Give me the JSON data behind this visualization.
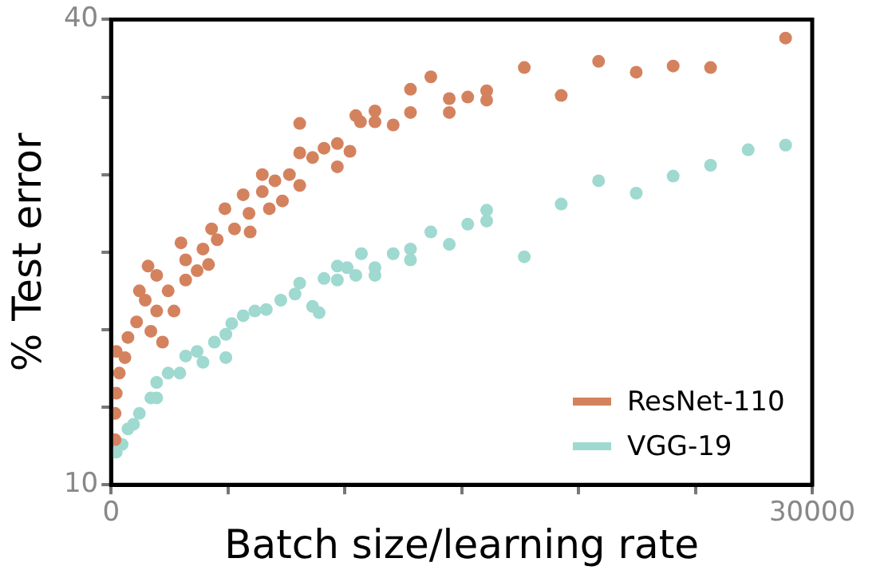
{
  "chart_data": {
    "type": "scatter",
    "xlabel": "Batch size/learning rate",
    "ylabel": "% Test error",
    "xlim": [
      0,
      30000
    ],
    "ylim": [
      10,
      40
    ],
    "xticks": [
      0,
      {
        "value": 5000,
        "label": null
      },
      {
        "value": 10000,
        "label": null
      },
      {
        "value": 15000,
        "label": null
      },
      {
        "value": 20000,
        "label": null
      },
      {
        "value": 25000,
        "label": null
      },
      30000
    ],
    "yticks": [
      10,
      {
        "value": 15,
        "label": null
      },
      {
        "value": 20,
        "label": null
      },
      {
        "value": 25,
        "label": null
      },
      {
        "value": 30,
        "label": null
      },
      {
        "value": 35,
        "label": null
      },
      40
    ],
    "grid": false,
    "legend": "bottom right",
    "marker": "circle",
    "series": [
      {
        "name": "ResNet-110",
        "color": "#d4825e",
        "x": [
          28860,
          25650,
          24050,
          22470,
          20860,
          19260,
          17680,
          16070,
          16070,
          15260,
          14470,
          14470,
          13680,
          12810,
          12810,
          12070,
          11290,
          11290,
          10670,
          10470,
          8070,
          8070,
          8620,
          9110,
          9680,
          9680,
          10220,
          6470,
          7010,
          7630,
          8070,
          5650,
          6470,
          6770,
          5900,
          7330,
          4870,
          5280,
          5950,
          4300,
          4540,
          2990,
          3190,
          3930,
          1580,
          1950,
          2440,
          3190,
          3680,
          1460,
          1950,
          1090,
          720,
          590,
          350,
          220,
          170,
          170,
          220,
          1700,
          2200,
          2690,
          1210,
          4170
        ],
        "values": [
          38.8,
          36.9,
          37.0,
          36.6,
          37.3,
          35.1,
          36.9,
          35.4,
          34.8,
          35.0,
          34.9,
          34.0,
          36.3,
          35.5,
          34.0,
          33.2,
          34.1,
          33.4,
          33.4,
          33.8,
          33.3,
          31.4,
          31.1,
          31.7,
          32.0,
          30.5,
          31.5,
          30.0,
          29.6,
          30.0,
          29.3,
          28.7,
          28.9,
          27.8,
          27.5,
          28.3,
          27.8,
          26.5,
          26.3,
          26.5,
          25.8,
          25.6,
          24.5,
          25.2,
          24.1,
          23.5,
          22.5,
          23.2,
          23.8,
          21.9,
          21.2,
          20.5,
          19.5,
          18.2,
          17.2,
          15.9,
          14.6,
          12.9,
          18.6,
          19.9,
          19.2,
          21.2,
          22.5,
          24.2
        ]
      },
      {
        "name": "VGG-19",
        "color": "#9fd9d0",
        "x": [
          28860,
          27260,
          25650,
          24050,
          22470,
          20860,
          19260,
          17680,
          16070,
          16070,
          15260,
          14470,
          13680,
          12810,
          12810,
          12070,
          11290,
          11290,
          10710,
          10470,
          10100,
          9680,
          9680,
          9110,
          8070,
          8620,
          8900,
          7870,
          7260,
          6640,
          6150,
          5650,
          5160,
          4910,
          4420,
          3680,
          3190,
          2440,
          1950,
          1700,
          1210,
          720,
          470,
          220,
          4910,
          3930,
          2940,
          1950,
          960
        ],
        "values": [
          31.9,
          31.6,
          30.6,
          29.9,
          28.8,
          29.6,
          28.1,
          24.7,
          27.7,
          27.0,
          26.8,
          25.5,
          26.3,
          25.2,
          24.5,
          24.9,
          24.0,
          23.5,
          24.9,
          23.5,
          24.0,
          24.1,
          23.2,
          23.3,
          23.0,
          21.5,
          21.1,
          22.3,
          21.9,
          21.3,
          21.2,
          20.9,
          20.4,
          19.7,
          19.2,
          18.6,
          18.3,
          17.2,
          16.6,
          15.6,
          14.6,
          13.6,
          12.6,
          12.1,
          18.2,
          17.9,
          17.2,
          15.6,
          13.9
        ]
      }
    ]
  }
}
